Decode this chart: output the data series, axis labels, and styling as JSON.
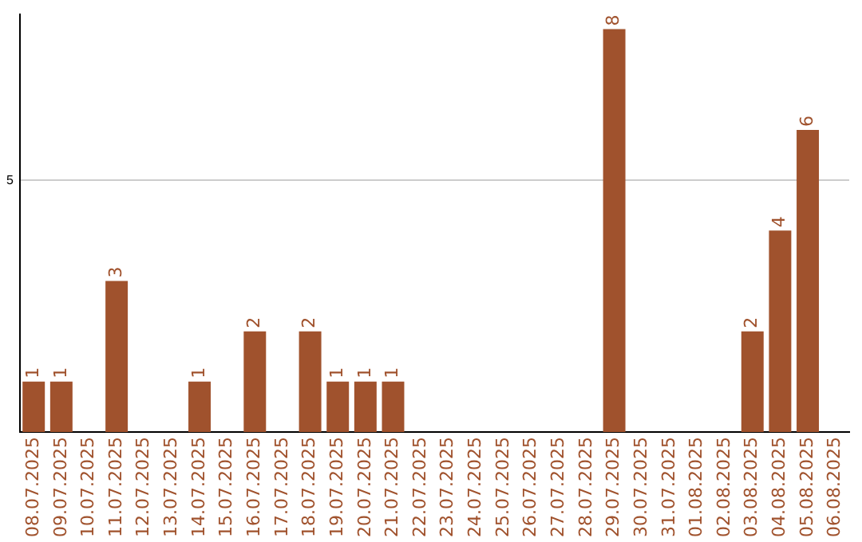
{
  "chart_data": {
    "type": "bar",
    "categories": [
      "08.07.2025",
      "09.07.2025",
      "10.07.2025",
      "11.07.2025",
      "12.07.2025",
      "13.07.2025",
      "14.07.2025",
      "15.07.2025",
      "16.07.2025",
      "17.07.2025",
      "18.07.2025",
      "19.07.2025",
      "20.07.2025",
      "21.07.2025",
      "22.07.2025",
      "23.07.2025",
      "24.07.2025",
      "25.07.2025",
      "26.07.2025",
      "27.07.2025",
      "28.07.2025",
      "29.07.2025",
      "30.07.2025",
      "31.07.2025",
      "01.08.2025",
      "02.08.2025",
      "03.08.2025",
      "04.08.2025",
      "05.08.2025",
      "06.08.2025"
    ],
    "values": [
      1,
      1,
      0,
      3,
      0,
      0,
      1,
      0,
      2,
      0,
      2,
      1,
      1,
      1,
      0,
      0,
      0,
      0,
      0,
      0,
      0,
      8,
      0,
      0,
      0,
      0,
      2,
      4,
      6,
      0
    ],
    "value_labels": [
      "1",
      "1",
      null,
      "3",
      null,
      null,
      "1",
      null,
      "2",
      null,
      "2",
      "1",
      "1",
      "1",
      null,
      null,
      null,
      null,
      null,
      null,
      null,
      "8",
      null,
      null,
      null,
      null,
      "2",
      "4",
      "6",
      null
    ],
    "color": "#a0522d",
    "ylim": [
      0,
      8.3
    ],
    "yticks": [
      5
    ],
    "grid": "y",
    "legend": false
  }
}
